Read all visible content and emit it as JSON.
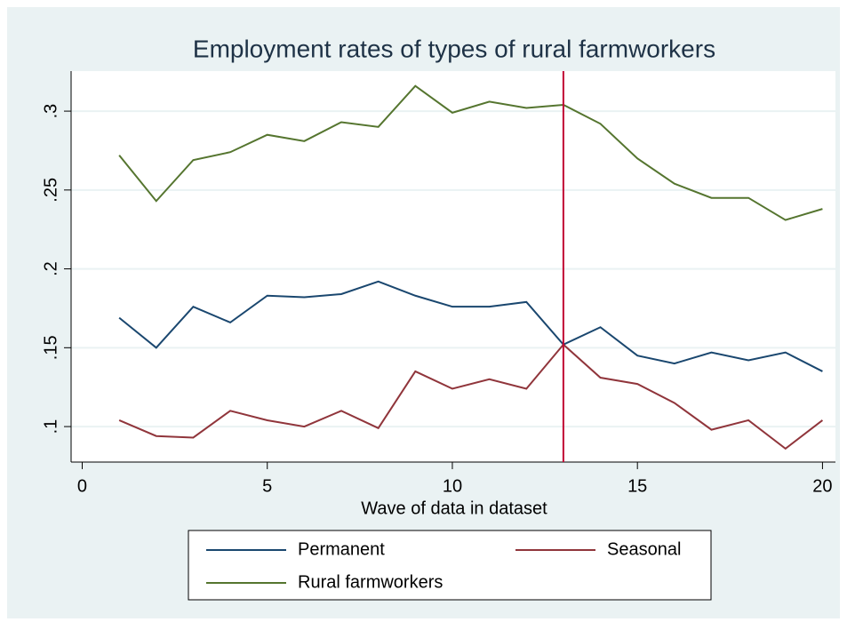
{
  "chart_data": {
    "type": "line",
    "title": "Employment rates of types of rural farmworkers",
    "x_label": "Wave of data in dataset",
    "x": [
      1,
      2,
      3,
      4,
      5,
      6,
      7,
      8,
      9,
      10,
      11,
      12,
      13,
      14,
      15,
      16,
      17,
      18,
      19,
      20
    ],
    "series": [
      {
        "name": "Permanent",
        "color": "#1a476f",
        "values": [
          0.169,
          0.15,
          0.176,
          0.166,
          0.183,
          0.182,
          0.184,
          0.192,
          0.183,
          0.176,
          0.176,
          0.179,
          0.152,
          0.163,
          0.145,
          0.14,
          0.147,
          0.142,
          0.147,
          0.135
        ]
      },
      {
        "name": "Seasonal",
        "color": "#90353b",
        "values": [
          0.104,
          0.094,
          0.093,
          0.11,
          0.104,
          0.1,
          0.11,
          0.099,
          0.135,
          0.124,
          0.13,
          0.124,
          0.152,
          0.131,
          0.127,
          0.115,
          0.098,
          0.104,
          0.086,
          0.104
        ]
      },
      {
        "name": "Rural farmworkers",
        "color": "#55752f",
        "values": [
          0.272,
          0.243,
          0.269,
          0.274,
          0.285,
          0.281,
          0.293,
          0.29,
          0.316,
          0.299,
          0.306,
          0.302,
          0.304,
          0.292,
          0.27,
          0.254,
          0.245,
          0.245,
          0.231,
          0.238
        ]
      }
    ],
    "xline": 13,
    "xline_color": "#c10534",
    "xlim": [
      -0.3,
      20.35
    ],
    "xticks": [
      0,
      5,
      10,
      15,
      20
    ],
    "ylim": [
      0.0775,
      0.3254
    ],
    "yticks": [
      {
        "value": 0.1,
        "label": ".1"
      },
      {
        "value": 0.15,
        "label": ".15"
      },
      {
        "value": 0.2,
        "label": ".2"
      },
      {
        "value": 0.25,
        "label": ".25"
      },
      {
        "value": 0.3,
        "label": ".3"
      }
    ],
    "grid": true,
    "legend": "bottom"
  }
}
